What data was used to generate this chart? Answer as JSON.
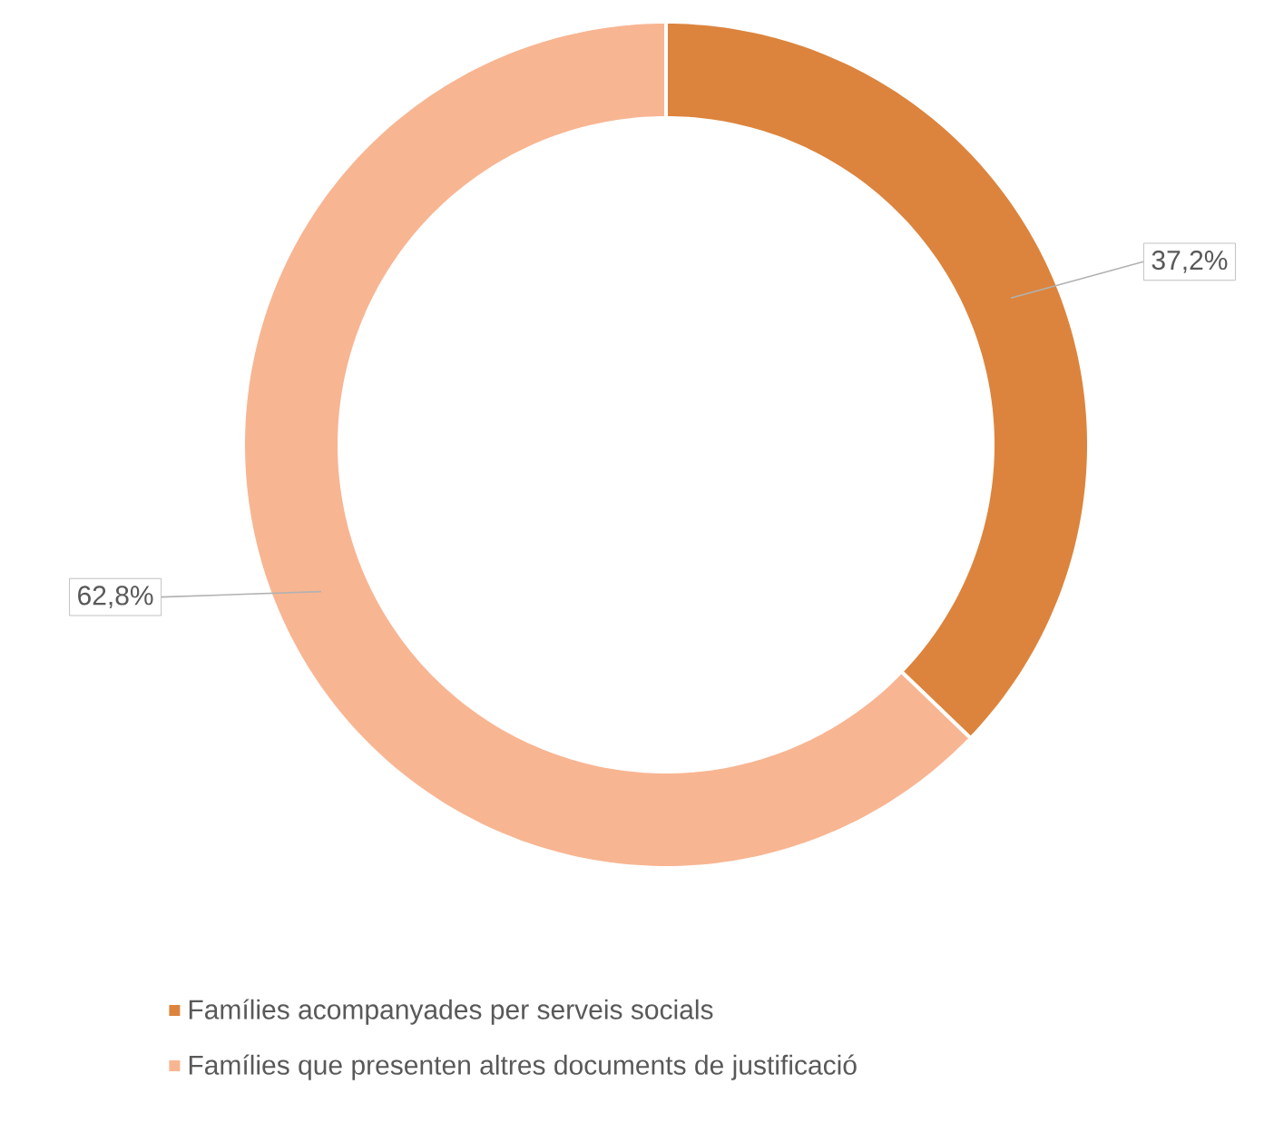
{
  "chart_data": {
    "type": "donut",
    "categories": [
      "Famílies acompanyades per serveis socials",
      "Famílies que presenten altres documents de justificació"
    ],
    "values": [
      37.2,
      62.8
    ],
    "colors": [
      "#dc843d",
      "#f8b592"
    ],
    "value_labels": [
      "37,2%",
      "62,8%"
    ],
    "legend": "bottom"
  }
}
